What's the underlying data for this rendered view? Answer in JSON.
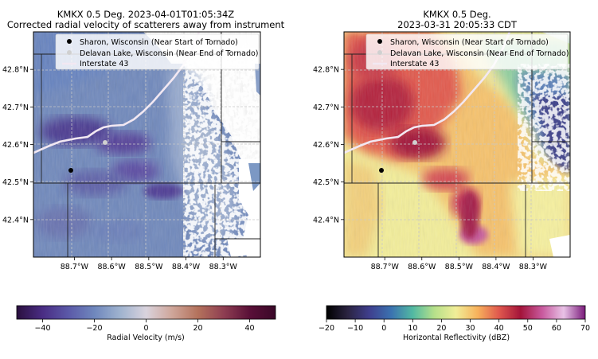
{
  "chart_data": [
    {
      "type": "heatmap",
      "title_line1": "KMKX 0.5 Deg. 2023-04-01T01:05:34Z",
      "title_line2": "Corrected radial velocity of scatterers away from instrument",
      "x_ticks": [
        "88.7°W",
        "88.6°W",
        "88.5°W",
        "88.4°W",
        "88.3°W"
      ],
      "y_ticks": [
        "42.8°N",
        "42.7°N",
        "42.6°N",
        "42.5°N",
        "42.4°N"
      ],
      "x_tick_values": [
        -88.7,
        -88.6,
        -88.5,
        -88.4,
        -88.3
      ],
      "y_tick_values": [
        42.8,
        42.7,
        42.6,
        42.5,
        42.4
      ],
      "xlim": [
        -88.81,
        -88.2
      ],
      "ylim": [
        42.3,
        42.9
      ],
      "points": [
        {
          "name": "Sharon, Wisconsin (Near Start of Tornado)",
          "lon": -88.73,
          "lat": 42.53,
          "color": "#000000"
        },
        {
          "name": "Delavan Lake, Wisconsin (Near End of Tornado)",
          "lon": -88.63,
          "lat": 42.61,
          "color": "#d0d0d0"
        }
      ],
      "line_name": "Interstate 43",
      "line_color": "#f2e8f2",
      "legend_placement": "top",
      "colorbar": {
        "label": "Radial Velocity (m/s)",
        "range": [
          -50,
          50
        ],
        "ticks": [
          "−40",
          "−20",
          "0",
          "20",
          "40"
        ],
        "tick_values": [
          -40,
          -20,
          0,
          20,
          40
        ],
        "colors": [
          "#2a0f3e",
          "#4a2d84",
          "#5b59a8",
          "#6f87bd",
          "#9fb3cf",
          "#d9d3dd",
          "#cfa69a",
          "#b4725c",
          "#8e3e52",
          "#5a1038",
          "#3a0828"
        ]
      }
    },
    {
      "type": "heatmap",
      "title_line1": "KMKX 0.5 Deg.",
      "title_line2": "2023-03-31 20:05:33 CDT",
      "x_ticks": [
        "88.7°W",
        "88.6°W",
        "88.5°W",
        "88.4°W",
        "88.3°W"
      ],
      "y_ticks": [
        "42.8°N",
        "42.7°N",
        "42.6°N",
        "42.5°N",
        "42.4°N"
      ],
      "x_tick_values": [
        -88.7,
        -88.6,
        -88.5,
        -88.4,
        -88.3
      ],
      "y_tick_values": [
        42.8,
        42.7,
        42.6,
        42.5,
        42.4
      ],
      "xlim": [
        -88.81,
        -88.2
      ],
      "ylim": [
        42.3,
        42.9
      ],
      "points": [
        {
          "name": "Sharon, Wisconsin (Near Start of Tornado)",
          "lon": -88.73,
          "lat": 42.53,
          "color": "#000000"
        },
        {
          "name": "Delavan Lake, Wisconsin (Near End of Tornado)",
          "lon": -88.63,
          "lat": 42.61,
          "color": "#d0d0d0"
        }
      ],
      "line_name": "Interstate 43",
      "line_color": "#f2e8f2",
      "legend_placement": "top",
      "colorbar": {
        "label": "Horizontal Reflectivity (dBZ)",
        "range": [
          -20,
          70
        ],
        "ticks": [
          "−20",
          "−10",
          "0",
          "10",
          "20",
          "30",
          "40",
          "50",
          "60",
          "70"
        ],
        "tick_values": [
          -20,
          -10,
          0,
          10,
          20,
          30,
          40,
          50,
          60,
          70
        ],
        "colors": [
          "#000000",
          "#2b2442",
          "#3f3f8e",
          "#3b72b0",
          "#52b9a2",
          "#b6e08a",
          "#f1ee98",
          "#f7b25c",
          "#e0584e",
          "#a3143a",
          "#c85a9e",
          "#e8c2e6",
          "#7a1a7a"
        ]
      }
    }
  ]
}
